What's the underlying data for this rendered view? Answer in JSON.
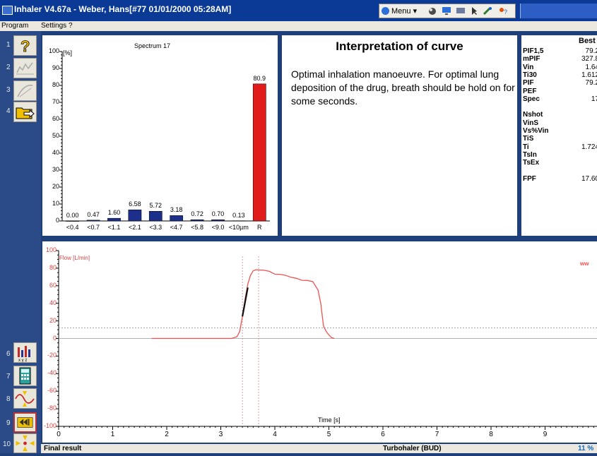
{
  "window": {
    "title": "Inhaler V4.67a - Weber, Hans[#77 01/01/2000 05:28AM]",
    "menu_label": "Menu"
  },
  "menubar": {
    "items": [
      "Program",
      "Settings",
      "?"
    ]
  },
  "toolbar_left": {
    "numbers": [
      "1",
      "2",
      "3",
      "4",
      "6",
      "7",
      "8",
      "9",
      "10"
    ]
  },
  "spectrum": {
    "title": "Spectrum 17",
    "unit": "[%]",
    "y_ticks": [
      "100",
      "90",
      "80",
      "70",
      "60",
      "50",
      "40",
      "30",
      "20",
      "10",
      "0"
    ],
    "value_labels": [
      "0.00",
      "0.47",
      "1.60",
      "6.58",
      "5.72",
      "3.18",
      "0.72",
      "0.70",
      "0.13",
      "80.9"
    ],
    "category_labels": [
      "<0.4",
      "<0.7",
      "<1.1",
      "<2.1",
      "<3.3",
      "<4.7",
      "<5.8",
      "<9.0",
      "<10µm",
      "R"
    ]
  },
  "chart_data": [
    {
      "type": "bar",
      "title": "Spectrum 17",
      "ylabel": "[%]",
      "ylim": [
        0,
        100
      ],
      "categories": [
        "<0.4",
        "<0.7",
        "<1.1",
        "<2.1",
        "<3.3",
        "<4.7",
        "<5.8",
        "<9.0",
        "<10µm",
        "R"
      ],
      "values": [
        0.0,
        0.47,
        1.6,
        6.58,
        5.72,
        3.18,
        0.72,
        0.7,
        0.13,
        80.9
      ],
      "colors": {
        "particle": "#1c2f8a",
        "residue": "#e11a1a"
      }
    },
    {
      "type": "line",
      "xlabel": "Time [s]",
      "ylabel": "Flow [L/min]",
      "xlim": [
        0,
        10
      ],
      "ylim": [
        -100,
        100
      ],
      "reference_lines": {
        "horizontal_y": 12,
        "vertical_x": [
          3.4,
          3.7
        ]
      },
      "series": [
        {
          "x": [
            1.72,
            3.0,
            3.2,
            3.3,
            3.35,
            3.4,
            3.45,
            3.5,
            3.55,
            3.6,
            3.65,
            3.7,
            3.75,
            3.8,
            3.9,
            4.0,
            4.1,
            4.2,
            4.3,
            4.4,
            4.5,
            4.6,
            4.7,
            4.8,
            4.85,
            4.9,
            4.95,
            5.0,
            5.05,
            5.1
          ],
          "y": [
            0,
            0,
            0,
            2,
            8,
            25,
            45,
            62,
            72,
            77,
            79,
            78,
            77,
            78,
            76,
            74,
            73,
            71,
            70,
            68,
            67,
            66,
            64,
            55,
            40,
            14,
            8,
            4,
            1,
            0
          ]
        }
      ],
      "colors": {
        "curve": "#f05050",
        "highlight": "#111111"
      }
    }
  ],
  "interpretation": {
    "title": "Interpretation of  curve",
    "text": "Optimal inhalation manoeuvre. For optimal lung deposition of the drug, breath should be hold on for some seconds."
  },
  "best": {
    "title": "Best",
    "rows": [
      {
        "k": "PIF1,5",
        "v": "79.2"
      },
      {
        "k": "mPIF",
        "v": "327.8"
      },
      {
        "k": "Vin",
        "v": "1.64"
      },
      {
        "k": "Ti30",
        "v": "1.612"
      },
      {
        "k": "PIF",
        "v": "79.2"
      },
      {
        "k": "PEF",
        "v": ""
      },
      {
        "k": "Spec",
        "v": "17"
      },
      {
        "k": "",
        "v": ""
      },
      {
        "k": "Nshot",
        "v": ""
      },
      {
        "k": "VinS",
        "v": ""
      },
      {
        "k": "Vs%Vin",
        "v": ""
      },
      {
        "k": "TiS",
        "v": ""
      },
      {
        "k": "Ti",
        "v": "1.724"
      },
      {
        "k": "TsIn",
        "v": ""
      },
      {
        "k": "TsEx",
        "v": ""
      },
      {
        "k": "",
        "v": ""
      },
      {
        "k": "FPF",
        "v": "17.60"
      }
    ]
  },
  "flow": {
    "ylabel": "Flow [L/min]",
    "xlabel": "Time [s]",
    "y_ticks": [
      "100",
      "80",
      "60",
      "40",
      "20",
      "0",
      "-20",
      "-40",
      "-60",
      "-80",
      "-100"
    ],
    "x_ticks": [
      "0",
      "1",
      "2",
      "3",
      "4",
      "5",
      "6",
      "7",
      "8",
      "9",
      "1"
    ],
    "legend_mark": "ww"
  },
  "status": {
    "left": "Final result",
    "middle": "Turbohaler (BUD)",
    "right": "11 %"
  }
}
